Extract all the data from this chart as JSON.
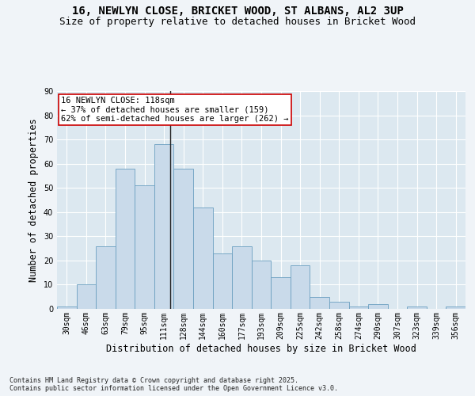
{
  "title": "16, NEWLYN CLOSE, BRICKET WOOD, ST ALBANS, AL2 3UP",
  "subtitle": "Size of property relative to detached houses in Bricket Wood",
  "xlabel": "Distribution of detached houses by size in Bricket Wood",
  "ylabel": "Number of detached properties",
  "categories": [
    "30sqm",
    "46sqm",
    "63sqm",
    "79sqm",
    "95sqm",
    "111sqm",
    "128sqm",
    "144sqm",
    "160sqm",
    "177sqm",
    "193sqm",
    "209sqm",
    "225sqm",
    "242sqm",
    "258sqm",
    "274sqm",
    "290sqm",
    "307sqm",
    "323sqm",
    "339sqm",
    "356sqm"
  ],
  "bar_values": [
    1,
    10,
    26,
    58,
    51,
    68,
    58,
    42,
    23,
    26,
    20,
    13,
    18,
    5,
    3,
    1,
    2,
    0,
    1,
    0,
    1
  ],
  "bar_color": "#c9daea",
  "bar_edge_color": "#6b9fc0",
  "annotation_text": "16 NEWLYN CLOSE: 118sqm\n← 37% of detached houses are smaller (159)\n62% of semi-detached houses are larger (262) →",
  "annotation_box_color": "#ffffff",
  "annotation_box_edge": "#cc0000",
  "property_line_x": 5.3,
  "ylim": [
    0,
    90
  ],
  "yticks": [
    0,
    10,
    20,
    30,
    40,
    50,
    60,
    70,
    80,
    90
  ],
  "background_color": "#dce8f0",
  "grid_color": "#ffffff",
  "fig_background": "#f0f4f8",
  "footer": "Contains HM Land Registry data © Crown copyright and database right 2025.\nContains public sector information licensed under the Open Government Licence v3.0.",
  "title_fontsize": 10,
  "subtitle_fontsize": 9,
  "xlabel_fontsize": 8.5,
  "ylabel_fontsize": 8.5,
  "tick_fontsize": 7,
  "annotation_fontsize": 7.5
}
